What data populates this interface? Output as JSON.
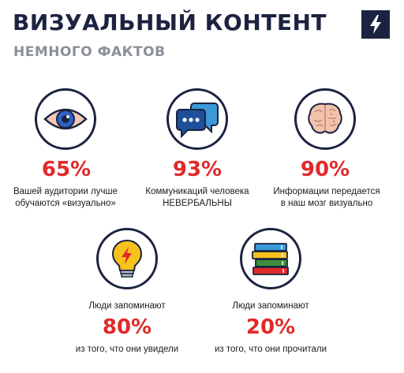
{
  "header": {
    "title": "ВИЗУАЛЬНЫЙ КОНТЕНТ",
    "subtitle": "НЕМНОГО ФАКТОВ",
    "logo_icon": "lightning-bolt-icon"
  },
  "colors": {
    "navy": "#1b2340",
    "red": "#e02a2a",
    "gray": "#8a8f99"
  },
  "stats": [
    {
      "icon": "eye-icon",
      "percent": "65%",
      "line1": "Вашей аудитории лучше",
      "line2": "обучаются «визуально»"
    },
    {
      "icon": "chat-bubbles-icon",
      "percent": "93%",
      "line1": "Коммуникаций человека",
      "line2": "НЕВЕРБАЛЬНЫ"
    },
    {
      "icon": "brain-icon",
      "percent": "90%",
      "line1": "Информации передается",
      "line2": "в наш мозг визуально"
    },
    {
      "icon": "lightbulb-icon",
      "percent": "80%",
      "line1": "Люди запоминают",
      "line2": "из того, что они увидели"
    },
    {
      "icon": "books-icon",
      "percent": "20%",
      "line1": "Люди запоминают",
      "line2": "из того, что они прочитали"
    }
  ]
}
